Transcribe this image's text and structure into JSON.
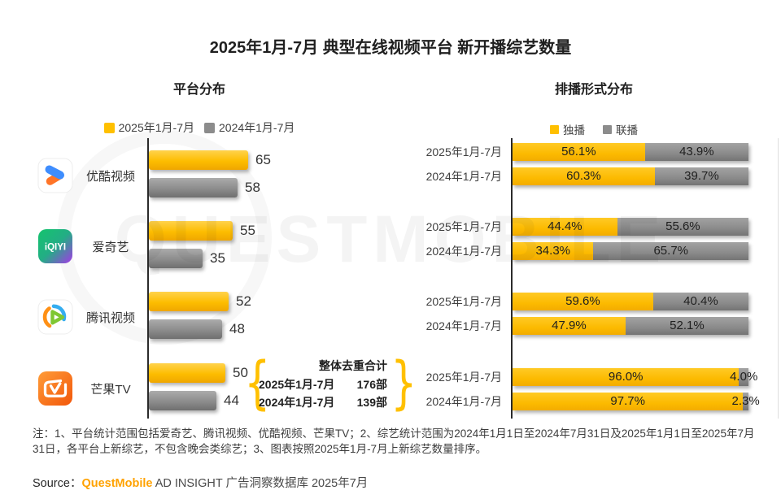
{
  "title": "2025年1月-7月 典型在线视频平台 新开播综艺数量",
  "left_section": {
    "subtitle": "平台分布",
    "legend": [
      {
        "label": "2025年1月-7月",
        "color": "#FFC000"
      },
      {
        "label": "2024年1月-7月",
        "color": "#8C8C8C"
      }
    ]
  },
  "right_section": {
    "subtitle": "排播形式分布",
    "legend": [
      {
        "label": "独播",
        "color": "#FFC000"
      },
      {
        "label": "联播",
        "color": "#8C8C8C"
      }
    ]
  },
  "platform_icons": [
    "youku-icon",
    "iqiyi-icon",
    "tencent-video-icon",
    "mangotv-icon"
  ],
  "chart_data": [
    {
      "type": "bar",
      "title": "平台分布",
      "orientation": "horizontal",
      "categories": [
        "优酷视频",
        "爱奇艺",
        "腾讯视频",
        "芒果TV"
      ],
      "series": [
        {
          "name": "2025年1月-7月",
          "color": "#FFC000",
          "values": [
            65,
            55,
            52,
            50
          ]
        },
        {
          "name": "2024年1月-7月",
          "color": "#8C8C8C",
          "values": [
            58,
            35,
            48,
            44
          ]
        }
      ],
      "xlim": [
        0,
        70
      ],
      "grid": false,
      "value_labels": "outside-end"
    },
    {
      "type": "bar",
      "title": "排播形式分布",
      "orientation": "horizontal",
      "stacked": true,
      "unit": "%",
      "segments": [
        "独播",
        "联播"
      ],
      "colors": [
        "#FFC000",
        "#8C8C8C"
      ],
      "xlim": [
        0,
        100
      ],
      "rows": [
        {
          "platform": "优酷视频",
          "period": "2025年1月-7月",
          "values": [
            56.1,
            43.9
          ]
        },
        {
          "platform": "优酷视频",
          "period": "2024年1月-7月",
          "values": [
            60.3,
            39.7
          ]
        },
        {
          "platform": "爱奇艺",
          "period": "2025年1月-7月",
          "values": [
            44.4,
            55.6
          ]
        },
        {
          "platform": "爱奇艺",
          "period": "2024年1月-7月",
          "values": [
            34.3,
            65.7
          ]
        },
        {
          "platform": "腾讯视频",
          "period": "2025年1月-7月",
          "values": [
            59.6,
            40.4
          ]
        },
        {
          "platform": "腾讯视频",
          "period": "2024年1月-7月",
          "values": [
            47.9,
            52.1
          ]
        },
        {
          "platform": "芒果TV",
          "period": "2025年1月-7月",
          "values": [
            96.0,
            4.0
          ]
        },
        {
          "platform": "芒果TV",
          "period": "2024年1月-7月",
          "values": [
            97.7,
            2.3
          ]
        }
      ]
    }
  ],
  "annotation": {
    "title": "整体去重合计",
    "rows": [
      {
        "period": "2025年1月-7月",
        "value": "176部"
      },
      {
        "period": "2024年1月-7月",
        "value": "139部"
      }
    ]
  },
  "notes": "注：1、平台统计范围包括爱奇艺、腾讯视频、优酷视频、芒果TV；2、综艺统计范围为2024年1月1日至2024年7月31日及2025年1月1日至2025年7月31日，各平台上新综艺，不包含晚会类综艺；3、图表按照2025年1月-7月上新综艺数量排序。",
  "source": {
    "prefix": "Source：",
    "brand": "QuestMobile",
    "suffix": " AD INSIGHT 广告洞察数据库 2025年7月"
  },
  "watermark": "QUESTMOBILE"
}
